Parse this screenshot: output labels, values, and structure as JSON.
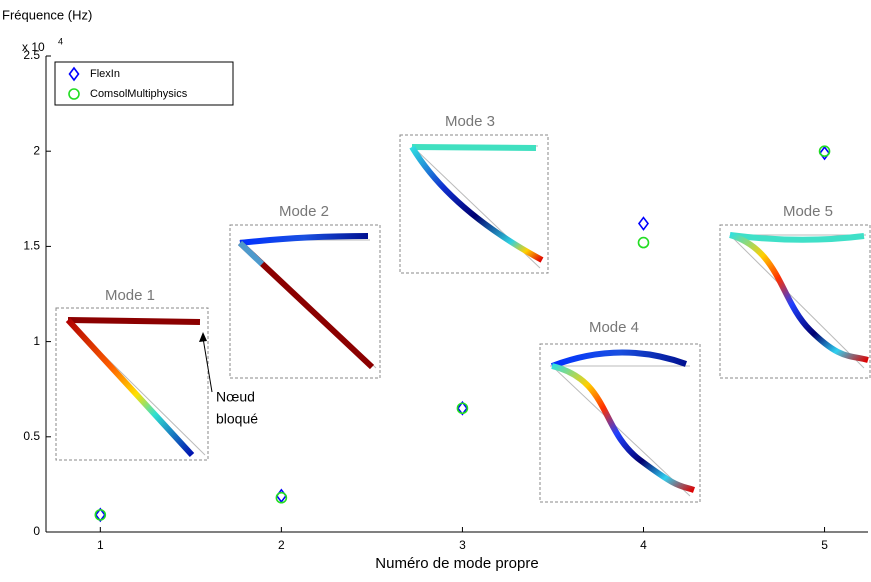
{
  "chart_data": {
    "type": "scatter",
    "y_label": "Fréquence (Hz)",
    "y_multiplier": {
      "base": "x 10",
      "exponent": "4"
    },
    "x_label": "Numéro de mode propre",
    "x": [
      1,
      2,
      3,
      4,
      5
    ],
    "series": [
      {
        "name": "FlexIn",
        "color": "#0000ff",
        "marker": "diamond",
        "values": [
          0.09,
          0.19,
          0.65,
          1.62,
          1.99
        ]
      },
      {
        "name": "ComsolMultiphysics",
        "color": "#22dd22",
        "marker": "circle",
        "values": [
          0.09,
          0.18,
          0.65,
          1.52,
          2.0
        ]
      }
    ],
    "xlim": [
      0.7,
      5.24
    ],
    "ylim": [
      0,
      2.5
    ],
    "xticks": [
      1,
      2,
      3,
      4,
      5
    ],
    "yticks": [
      0,
      0.5,
      1,
      1.5,
      2,
      2.5
    ],
    "legend": "upper left",
    "insets": [
      "Mode 1",
      "Mode 2",
      "Mode 3",
      "Mode 4",
      "Mode 5"
    ],
    "annotation": [
      "Nœud",
      "bloqué"
    ]
  }
}
